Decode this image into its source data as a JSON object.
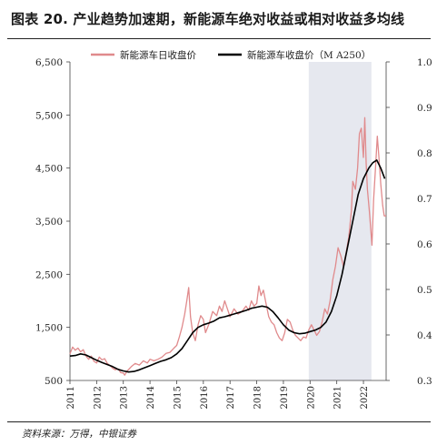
{
  "figure": {
    "title": "图表 20. 产业趋势加速期，新能源车绝对收益或相对收益多均线",
    "source": "资料来源：万得，中银证券"
  },
  "chart_data": {
    "type": "line",
    "title": "图表 20. 产业趋势加速期，新能源车绝对收益或相对收益多均线",
    "xlabel": "",
    "ylabel": "",
    "y_left": {
      "min": 500,
      "max": 6500,
      "ticks": [
        "500",
        "1,500",
        "2,500",
        "3,500",
        "4,500",
        "5,500",
        "6,500"
      ]
    },
    "y_right": {
      "min": 0.3,
      "max": 1.0,
      "ticks": [
        "0.3",
        "0.4",
        "0.5",
        "0.6",
        "0.7",
        "0.8",
        "0.9",
        "1.0"
      ]
    },
    "x_range": [
      2011.0,
      2022.85
    ],
    "x_ticks": [
      "2011",
      "2012",
      "2013",
      "2014",
      "2015",
      "2016",
      "2017",
      "2018",
      "2019",
      "2020",
      "2021",
      "2022"
    ],
    "shaded_band": {
      "from": 2019.95,
      "to": 2022.3,
      "color": "#e6e8ef"
    },
    "legend_position": "top",
    "series": [
      {
        "name": "新能源车日收盘价",
        "color": "#e08a8c",
        "axis": "left",
        "points": [
          [
            2011.0,
            1000
          ],
          [
            2011.1,
            1130
          ],
          [
            2011.2,
            1070
          ],
          [
            2011.3,
            1110
          ],
          [
            2011.4,
            1040
          ],
          [
            2011.5,
            1080
          ],
          [
            2011.6,
            960
          ],
          [
            2011.7,
            900
          ],
          [
            2011.8,
            960
          ],
          [
            2011.9,
            860
          ],
          [
            2012.0,
            830
          ],
          [
            2012.1,
            940
          ],
          [
            2012.2,
            890
          ],
          [
            2012.3,
            910
          ],
          [
            2012.4,
            820
          ],
          [
            2012.5,
            780
          ],
          [
            2012.6,
            730
          ],
          [
            2012.7,
            700
          ],
          [
            2012.8,
            720
          ],
          [
            2012.9,
            650
          ],
          [
            2013.0,
            640
          ],
          [
            2013.05,
            600
          ],
          [
            2013.15,
            680
          ],
          [
            2013.3,
            760
          ],
          [
            2013.45,
            820
          ],
          [
            2013.6,
            790
          ],
          [
            2013.75,
            870
          ],
          [
            2013.9,
            830
          ],
          [
            2014.0,
            900
          ],
          [
            2014.15,
            870
          ],
          [
            2014.3,
            900
          ],
          [
            2014.45,
            940
          ],
          [
            2014.6,
            1010
          ],
          [
            2014.75,
            1030
          ],
          [
            2014.9,
            1110
          ],
          [
            2015.0,
            1160
          ],
          [
            2015.1,
            1320
          ],
          [
            2015.2,
            1500
          ],
          [
            2015.3,
            1750
          ],
          [
            2015.38,
            2000
          ],
          [
            2015.45,
            2250
          ],
          [
            2015.52,
            1700
          ],
          [
            2015.6,
            1400
          ],
          [
            2015.7,
            1250
          ],
          [
            2015.8,
            1550
          ],
          [
            2015.9,
            1720
          ],
          [
            2016.0,
            1650
          ],
          [
            2016.08,
            1400
          ],
          [
            2016.2,
            1550
          ],
          [
            2016.35,
            1800
          ],
          [
            2016.5,
            1720
          ],
          [
            2016.6,
            1900
          ],
          [
            2016.7,
            1800
          ],
          [
            2016.8,
            2000
          ],
          [
            2016.9,
            1850
          ],
          [
            2017.0,
            1700
          ],
          [
            2017.15,
            1850
          ],
          [
            2017.3,
            1750
          ],
          [
            2017.45,
            1800
          ],
          [
            2017.6,
            1900
          ],
          [
            2017.7,
            1820
          ],
          [
            2017.8,
            2000
          ],
          [
            2017.9,
            1900
          ],
          [
            2018.0,
            1950
          ],
          [
            2018.08,
            2280
          ],
          [
            2018.16,
            2100
          ],
          [
            2018.25,
            2200
          ],
          [
            2018.35,
            1950
          ],
          [
            2018.45,
            1700
          ],
          [
            2018.55,
            1600
          ],
          [
            2018.65,
            1550
          ],
          [
            2018.75,
            1400
          ],
          [
            2018.85,
            1300
          ],
          [
            2018.95,
            1250
          ],
          [
            2019.05,
            1400
          ],
          [
            2019.15,
            1650
          ],
          [
            2019.25,
            1600
          ],
          [
            2019.35,
            1450
          ],
          [
            2019.45,
            1350
          ],
          [
            2019.55,
            1300
          ],
          [
            2019.65,
            1250
          ],
          [
            2019.75,
            1320
          ],
          [
            2019.85,
            1300
          ],
          [
            2019.95,
            1450
          ],
          [
            2020.05,
            1550
          ],
          [
            2020.15,
            1450
          ],
          [
            2020.25,
            1350
          ],
          [
            2020.35,
            1420
          ],
          [
            2020.45,
            1600
          ],
          [
            2020.55,
            1850
          ],
          [
            2020.65,
            1750
          ],
          [
            2020.75,
            2000
          ],
          [
            2020.85,
            2400
          ],
          [
            2020.95,
            2650
          ],
          [
            2021.05,
            3000
          ],
          [
            2021.15,
            2850
          ],
          [
            2021.25,
            2650
          ],
          [
            2021.35,
            2900
          ],
          [
            2021.45,
            3200
          ],
          [
            2021.55,
            3700
          ],
          [
            2021.6,
            4250
          ],
          [
            2021.7,
            4100
          ],
          [
            2021.78,
            4500
          ],
          [
            2021.85,
            5150
          ],
          [
            2021.92,
            5250
          ],
          [
            2022.0,
            4700
          ],
          [
            2022.05,
            5450
          ],
          [
            2022.1,
            4600
          ],
          [
            2022.15,
            4100
          ],
          [
            2022.22,
            3700
          ],
          [
            2022.28,
            3300
          ],
          [
            2022.32,
            3050
          ],
          [
            2022.38,
            3900
          ],
          [
            2022.45,
            4500
          ],
          [
            2022.52,
            5100
          ],
          [
            2022.58,
            4700
          ],
          [
            2022.65,
            4200
          ],
          [
            2022.72,
            3800
          ],
          [
            2022.78,
            3600
          ],
          [
            2022.85,
            3600
          ]
        ]
      },
      {
        "name": "新能源车收盘价（M A250）",
        "color": "#000000",
        "axis": "left",
        "points": [
          [
            2011.0,
            960
          ],
          [
            2011.2,
            970
          ],
          [
            2011.4,
            1000
          ],
          [
            2011.6,
            980
          ],
          [
            2011.8,
            930
          ],
          [
            2012.0,
            880
          ],
          [
            2012.2,
            840
          ],
          [
            2012.4,
            800
          ],
          [
            2012.6,
            760
          ],
          [
            2012.8,
            710
          ],
          [
            2013.0,
            680
          ],
          [
            2013.2,
            660
          ],
          [
            2013.4,
            670
          ],
          [
            2013.6,
            700
          ],
          [
            2013.8,
            740
          ],
          [
            2014.0,
            780
          ],
          [
            2014.2,
            820
          ],
          [
            2014.4,
            860
          ],
          [
            2014.6,
            890
          ],
          [
            2014.8,
            930
          ],
          [
            2015.0,
            1000
          ],
          [
            2015.2,
            1100
          ],
          [
            2015.4,
            1250
          ],
          [
            2015.6,
            1400
          ],
          [
            2015.8,
            1500
          ],
          [
            2016.0,
            1550
          ],
          [
            2016.2,
            1580
          ],
          [
            2016.4,
            1620
          ],
          [
            2016.6,
            1680
          ],
          [
            2016.8,
            1700
          ],
          [
            2017.0,
            1730
          ],
          [
            2017.2,
            1760
          ],
          [
            2017.4,
            1790
          ],
          [
            2017.6,
            1820
          ],
          [
            2017.8,
            1860
          ],
          [
            2018.0,
            1880
          ],
          [
            2018.2,
            1900
          ],
          [
            2018.4,
            1880
          ],
          [
            2018.6,
            1800
          ],
          [
            2018.8,
            1680
          ],
          [
            2019.0,
            1550
          ],
          [
            2019.2,
            1450
          ],
          [
            2019.4,
            1400
          ],
          [
            2019.6,
            1380
          ],
          [
            2019.8,
            1390
          ],
          [
            2020.0,
            1420
          ],
          [
            2020.2,
            1450
          ],
          [
            2020.4,
            1500
          ],
          [
            2020.6,
            1600
          ],
          [
            2020.8,
            1800
          ],
          [
            2021.0,
            2100
          ],
          [
            2021.2,
            2500
          ],
          [
            2021.4,
            3000
          ],
          [
            2021.6,
            3500
          ],
          [
            2021.8,
            4000
          ],
          [
            2022.0,
            4300
          ],
          [
            2022.2,
            4500
          ],
          [
            2022.35,
            4600
          ],
          [
            2022.5,
            4650
          ],
          [
            2022.65,
            4500
          ],
          [
            2022.8,
            4300
          ]
        ]
      }
    ]
  }
}
